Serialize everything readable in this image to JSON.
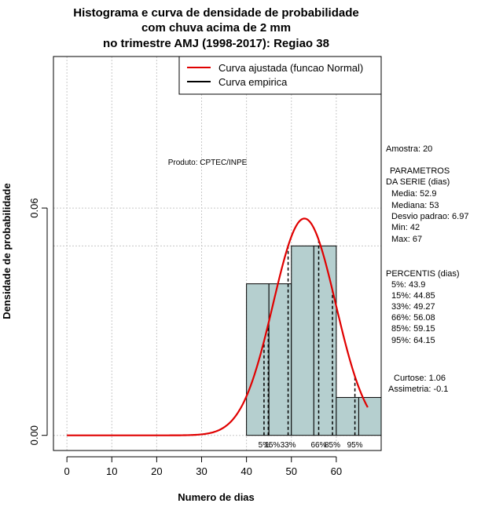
{
  "chart_data": {
    "type": "bar",
    "title_lines": [
      "Histograma e curva de densidade de probabilidade",
      "com chuva acima de 2 mm",
      "no trimestre AMJ (1998-2017): Regiao 38"
    ],
    "xlabel": "Numero de dias",
    "ylabel": "Densidade de probabilidade",
    "xlim": [
      -3,
      70
    ],
    "ylim": [
      -0.004,
      0.1
    ],
    "x_ticks": [
      0,
      10,
      20,
      30,
      40,
      50,
      60
    ],
    "y_ticks": [
      0.0,
      0.06
    ],
    "y_tick_labels": [
      "0.00",
      "0.06"
    ],
    "grid": true,
    "histogram": {
      "bins": [
        [
          40,
          45
        ],
        [
          45,
          50
        ],
        [
          50,
          55
        ],
        [
          55,
          60
        ],
        [
          60,
          65
        ],
        [
          65,
          70
        ]
      ],
      "density": [
        0.04,
        0.04,
        0.05,
        0.05,
        0.01,
        0.01
      ],
      "fill": "#b5cfcf"
    },
    "series": [
      {
        "name": "Curva ajustada (funcao Normal)",
        "type": "normal_curve",
        "mean": 52.9,
        "sd": 6.97,
        "x_range": [
          0,
          67
        ],
        "color": "#e00000"
      },
      {
        "name": "Curva empirica",
        "color": "#000000"
      }
    ],
    "percentiles": [
      {
        "label": "5%",
        "value": 43.9
      },
      {
        "label": "15%",
        "value": 44.85
      },
      {
        "label": "33%",
        "value": 49.27
      },
      {
        "label": "66%",
        "value": 56.08
      },
      {
        "label": "85%",
        "value": 59.15
      },
      {
        "label": "95%",
        "value": 64.15
      }
    ],
    "percentile_label_text": [
      "5%",
      "15%",
      "33%",
      "66%",
      "85%",
      "95%"
    ],
    "legend_position": "top-right",
    "product_label": "Produto: CPTEC/INPE",
    "side_panel": {
      "amostra": "Amostra: 20",
      "parametros_title_1": "PARAMETROS",
      "parametros_title_2": "DA SERIE (dias)",
      "media": "Media: 52.9",
      "mediana": "Mediana: 53",
      "desvio": "Desvio padrao: 6.97",
      "min": "Min: 42",
      "max": "Max: 67",
      "percentis_title": "PERCENTIS (dias)",
      "p5": "5%: 43.9",
      "p15": "15%: 44.85",
      "p33": "33%: 49.27",
      "p66": "66%: 56.08",
      "p85": "85%: 59.15",
      "p95": "95%: 64.15",
      "curtose": "Curtose: 1.06",
      "assimetria": "Assimetria: -0.1"
    }
  }
}
